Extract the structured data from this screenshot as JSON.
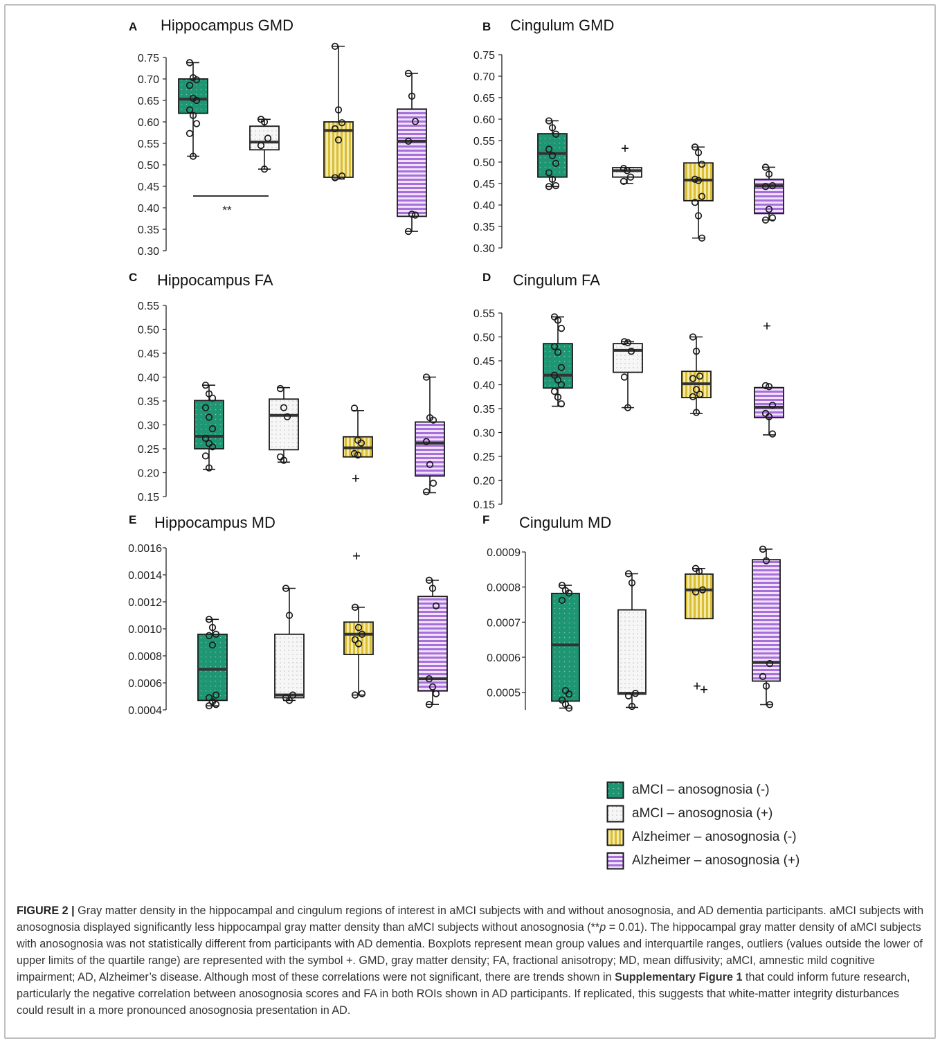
{
  "colors": {
    "aMCI_neg": "#1f9673",
    "aMCI_pos": "#f4f4f4",
    "AD_neg": "#e8d36a",
    "AD_pos": "#b985e6",
    "stroke": "#1a1a1a",
    "median": "#333333"
  },
  "legend": [
    {
      "label": "aMCI – anosognosia (-)",
      "group": "aMCI_neg"
    },
    {
      "label": "aMCI – anosognosia (+)",
      "group": "aMCI_pos"
    },
    {
      "label": "Alzheimer – anosognosia (-)",
      "group": "AD_neg"
    },
    {
      "label": "Alzheimer – anosognosia (+)",
      "group": "AD_pos"
    }
  ],
  "chart_data": [
    {
      "panel": "A",
      "title": "Hippocampus GMD",
      "type": "box",
      "ylim": [
        0.3,
        0.75
      ],
      "yticks": [
        "0.75",
        "0.70",
        "0.65",
        "0.60",
        "0.55",
        "0.50",
        "0.45",
        "0.40",
        "0.35",
        "0.30"
      ],
      "significance": "**",
      "groups": [
        {
          "group": "aMCI_neg",
          "q1": 0.62,
          "median": 0.653,
          "q3": 0.7,
          "whisker_low": 0.52,
          "whisker_high": 0.738,
          "points": [
            0.738,
            0.703,
            0.698,
            0.685,
            0.655,
            0.65,
            0.628,
            0.615,
            0.596,
            0.573,
            0.52
          ],
          "outliers": []
        },
        {
          "group": "aMCI_pos",
          "q1": 0.535,
          "median": 0.553,
          "q3": 0.59,
          "whisker_low": 0.49,
          "whisker_high": 0.606,
          "points": [
            0.606,
            0.6,
            0.562,
            0.545,
            0.49
          ],
          "outliers": []
        },
        {
          "group": "AD_neg",
          "q1": 0.471,
          "median": 0.58,
          "q3": 0.6,
          "whisker_low": 0.467,
          "whisker_high": 0.776,
          "points": [
            0.776,
            0.628,
            0.598,
            0.584,
            0.558,
            0.474,
            0.47
          ],
          "outliers": []
        },
        {
          "group": "AD_pos",
          "q1": 0.38,
          "median": 0.555,
          "q3": 0.63,
          "whisker_low": 0.345,
          "whisker_high": 0.713,
          "points": [
            0.713,
            0.66,
            0.601,
            0.555,
            0.385,
            0.383,
            0.345
          ],
          "outliers": []
        }
      ]
    },
    {
      "panel": "B",
      "title": "Cingulum GMD",
      "type": "box",
      "ylim": [
        0.3,
        0.75
      ],
      "yticks": [
        "0.75",
        "0.70",
        "0.65",
        "0.60",
        "0.55",
        "0.50",
        "0.45",
        "0.40",
        "0.35",
        "0.30"
      ],
      "groups": [
        {
          "group": "aMCI_neg",
          "q1": 0.465,
          "median": 0.52,
          "q3": 0.566,
          "whisker_low": 0.443,
          "whisker_high": 0.596,
          "points": [
            0.596,
            0.58,
            0.565,
            0.53,
            0.515,
            0.497,
            0.475,
            0.46,
            0.445,
            0.443
          ],
          "outliers": []
        },
        {
          "group": "aMCI_pos",
          "q1": 0.465,
          "median": 0.48,
          "q3": 0.487,
          "whisker_low": 0.45,
          "whisker_high": 0.487,
          "points": [
            0.485,
            0.48,
            0.465,
            0.455
          ],
          "outliers": [
            0.532
          ]
        },
        {
          "group": "AD_neg",
          "q1": 0.41,
          "median": 0.458,
          "q3": 0.498,
          "whisker_low": 0.323,
          "whisker_high": 0.535,
          "points": [
            0.535,
            0.522,
            0.495,
            0.46,
            0.457,
            0.42,
            0.406,
            0.375,
            0.323
          ],
          "outliers": []
        },
        {
          "group": "AD_pos",
          "q1": 0.38,
          "median": 0.445,
          "q3": 0.46,
          "whisker_low": 0.365,
          "whisker_high": 0.488,
          "points": [
            0.488,
            0.472,
            0.445,
            0.443,
            0.39,
            0.37,
            0.365
          ],
          "outliers": []
        }
      ]
    },
    {
      "panel": "C",
      "title": "Hippocampus FA",
      "type": "box",
      "ylim": [
        0.15,
        0.55
      ],
      "yticks": [
        "0.55",
        "0.50",
        "0.45",
        "0.40",
        "0.35",
        "0.30",
        "0.25",
        "0.20",
        "0.15"
      ],
      "groups": [
        {
          "group": "aMCI_neg",
          "q1": 0.25,
          "median": 0.276,
          "q3": 0.351,
          "whisker_low": 0.207,
          "whisker_high": 0.383,
          "points": [
            0.383,
            0.365,
            0.356,
            0.336,
            0.316,
            0.292,
            0.272,
            0.261,
            0.254,
            0.235,
            0.21
          ],
          "outliers": []
        },
        {
          "group": "aMCI_pos",
          "q1": 0.248,
          "median": 0.32,
          "q3": 0.354,
          "whisker_low": 0.222,
          "whisker_high": 0.378,
          "points": [
            0.376,
            0.336,
            0.317,
            0.233,
            0.226
          ],
          "outliers": []
        },
        {
          "group": "AD_neg",
          "q1": 0.233,
          "median": 0.252,
          "q3": 0.275,
          "whisker_low": 0.233,
          "whisker_high": 0.33,
          "points": [
            0.335,
            0.268,
            0.262,
            0.24,
            0.237
          ],
          "outliers": [
            0.188
          ]
        },
        {
          "group": "AD_pos",
          "q1": 0.193,
          "median": 0.262,
          "q3": 0.306,
          "whisker_low": 0.158,
          "whisker_high": 0.4,
          "points": [
            0.4,
            0.315,
            0.31,
            0.265,
            0.217,
            0.178,
            0.16
          ],
          "outliers": []
        }
      ]
    },
    {
      "panel": "D",
      "title": "Cingulum FA",
      "type": "box",
      "ylim": [
        0.15,
        0.55
      ],
      "yticks": [
        "0.55",
        "0.50",
        "0.45",
        "0.40",
        "0.35",
        "0.30",
        "0.25",
        "0.20",
        "0.15"
      ],
      "groups": [
        {
          "group": "aMCI_neg",
          "q1": 0.393,
          "median": 0.42,
          "q3": 0.486,
          "whisker_low": 0.355,
          "whisker_high": 0.542,
          "points": [
            0.542,
            0.535,
            0.518,
            0.48,
            0.468,
            0.436,
            0.42,
            0.41,
            0.4,
            0.386,
            0.374,
            0.36
          ],
          "outliers": []
        },
        {
          "group": "aMCI_pos",
          "q1": 0.426,
          "median": 0.472,
          "q3": 0.486,
          "whisker_low": 0.352,
          "whisker_high": 0.49,
          "points": [
            0.49,
            0.488,
            0.47,
            0.416,
            0.352
          ],
          "outliers": []
        },
        {
          "group": "AD_neg",
          "q1": 0.373,
          "median": 0.402,
          "q3": 0.428,
          "whisker_low": 0.34,
          "whisker_high": 0.5,
          "points": [
            0.5,
            0.47,
            0.418,
            0.413,
            0.39,
            0.38,
            0.375,
            0.342
          ],
          "outliers": []
        },
        {
          "group": "AD_pos",
          "q1": 0.331,
          "median": 0.353,
          "q3": 0.394,
          "whisker_low": 0.295,
          "whisker_high": 0.394,
          "points": [
            0.398,
            0.396,
            0.357,
            0.34,
            0.333,
            0.297
          ],
          "outliers": [
            0.523
          ]
        }
      ]
    },
    {
      "panel": "E",
      "title": "Hippocampus MD",
      "type": "box",
      "ylim": [
        0.0004,
        0.0016
      ],
      "yticks": [
        "0.0016",
        "0.0014",
        "0.0012",
        "0.0010",
        "0.0008",
        "0.0006",
        "0.0004"
      ],
      "groups": [
        {
          "group": "aMCI_neg",
          "q1": 0.00047,
          "median": 0.0007,
          "q3": 0.00096,
          "whisker_low": 0.00043,
          "whisker_high": 0.00107,
          "points": [
            0.00107,
            0.00101,
            0.00096,
            0.00095,
            0.00088,
            0.00051,
            0.00049,
            0.00046,
            0.00044,
            0.00043
          ],
          "outliers": []
        },
        {
          "group": "aMCI_pos",
          "q1": 0.00049,
          "median": 0.00051,
          "q3": 0.00096,
          "whisker_low": 0.00047,
          "whisker_high": 0.0013,
          "points": [
            0.0013,
            0.0011,
            0.00051,
            0.00049,
            0.00047
          ],
          "outliers": []
        },
        {
          "group": "AD_neg",
          "q1": 0.00081,
          "median": 0.00096,
          "q3": 0.00105,
          "whisker_low": 0.00051,
          "whisker_high": 0.00116,
          "points": [
            0.00116,
            0.00101,
            0.00096,
            0.00092,
            0.00089,
            0.00052,
            0.00051
          ],
          "outliers": [
            0.00154
          ]
        },
        {
          "group": "AD_pos",
          "q1": 0.00054,
          "median": 0.00063,
          "q3": 0.00124,
          "whisker_low": 0.00044,
          "whisker_high": 0.00136,
          "points": [
            0.00136,
            0.0013,
            0.00117,
            0.00063,
            0.00057,
            0.00052,
            0.00044
          ],
          "outliers": []
        }
      ]
    },
    {
      "panel": "F",
      "title": "Cingulum MD",
      "type": "box",
      "ylim": [
        0.00045,
        0.0009
      ],
      "yticks": [
        "0.0009",
        "0.0008",
        "0.0007",
        "0.0006",
        "0.0005"
      ],
      "groups": [
        {
          "group": "aMCI_neg",
          "q1": 0.000475,
          "median": 0.000635,
          "q3": 0.000782,
          "whisker_low": 0.000455,
          "whisker_high": 0.000805,
          "points": [
            0.000805,
            0.00079,
            0.000783,
            0.000762,
            0.000505,
            0.000495,
            0.000478,
            0.000466,
            0.000455
          ],
          "outliers": []
        },
        {
          "group": "aMCI_pos",
          "q1": 0.000495,
          "median": 0.000497,
          "q3": 0.000735,
          "whisker_low": 0.000457,
          "whisker_high": 0.000838,
          "points": [
            0.000838,
            0.000812,
            0.000497,
            0.00049,
            0.00046
          ],
          "outliers": []
        },
        {
          "group": "AD_neg",
          "q1": 0.00071,
          "median": 0.000792,
          "q3": 0.000837,
          "whisker_low": 0.00071,
          "whisker_high": 0.000853,
          "points": [
            0.000853,
            0.000845,
            0.000792,
            0.000786
          ],
          "outliers": [
            0.000518,
            0.000508
          ]
        },
        {
          "group": "AD_pos",
          "q1": 0.000532,
          "median": 0.000585,
          "q3": 0.000878,
          "whisker_low": 0.000465,
          "whisker_high": 0.000908,
          "points": [
            0.000908,
            0.000875,
            0.000582,
            0.000545,
            0.000518,
            0.000465
          ],
          "outliers": []
        }
      ]
    }
  ],
  "caption": {
    "label": "FIGURE 2 |",
    "text1": " Gray matter density in the hippocampal and cingulum regions of interest in aMCI subjects with and without anosognosia, and AD dementia participants. aMCI subjects with anosognosia displayed significantly less hippocampal gray matter density than aMCI subjects without anosognosia (**",
    "p_italic": "p",
    "text2": " = 0.01). The hippocampal gray matter density of aMCI subjects with anosognosia was not statistically different from participants with AD dementia. Boxplots represent mean group values and interquartile ranges, outliers (values outside the lower of upper limits of the quartile range) are represented with the symbol +. GMD, gray matter density; FA, fractional anisotropy; MD, mean diffusivity; aMCI, amnestic mild cognitive impairment; AD, Alzheimer’s disease. Although most of these correlations were not significant, there are trends shown in ",
    "bold_ref": "Supplementary Figure 1",
    "text3": " that could inform future research, particularly the negative correlation between anosognosia scores and FA in both ROIs shown in AD participants. If replicated, this suggests that white-matter integrity disturbances could result in a more pronounced anosognosia presentation in AD."
  }
}
